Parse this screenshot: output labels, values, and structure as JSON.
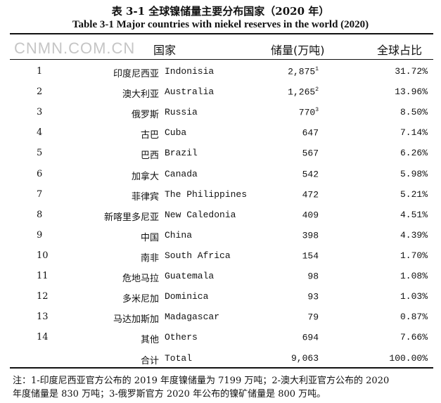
{
  "title_cn": "表 3-1  全球镍储量主要分布国家（2020 年）",
  "title_en": "Table 3-1 Major countries with niekel reserves in the world (2020)",
  "headers": {
    "country": "国家",
    "reserves": "储量(万吨)",
    "share": "全球占比"
  },
  "rows": [
    {
      "idx": "1",
      "cn": "印度尼西亚",
      "en": "Indonisia",
      "res": "2,875",
      "sup": "1",
      "pct": "31.72%"
    },
    {
      "idx": "2",
      "cn": "澳大利亚",
      "en": "Australia",
      "res": "1,265",
      "sup": "2",
      "pct": "13.96%"
    },
    {
      "idx": "3",
      "cn": "俄罗斯",
      "en": "Russia",
      "res": "770",
      "sup": "3",
      "pct": "8.50%"
    },
    {
      "idx": "4",
      "cn": "古巴",
      "en": "Cuba",
      "res": "647",
      "sup": "",
      "pct": "7.14%"
    },
    {
      "idx": "5",
      "cn": "巴西",
      "en": "Brazil",
      "res": "567",
      "sup": "",
      "pct": "6.26%"
    },
    {
      "idx": "6",
      "cn": "加拿大",
      "en": "Canada",
      "res": "542",
      "sup": "",
      "pct": "5.98%"
    },
    {
      "idx": "7",
      "cn": "菲律宾",
      "en": "The Philippines",
      "res": "472",
      "sup": "",
      "pct": "5.21%"
    },
    {
      "idx": "8",
      "cn": "新喀里多尼亚",
      "en": "New Caledonia",
      "res": "409",
      "sup": "",
      "pct": "4.51%"
    },
    {
      "idx": "9",
      "cn": "中国",
      "en": "China",
      "res": "398",
      "sup": "",
      "pct": "4.39%"
    },
    {
      "idx": "10",
      "cn": "南非",
      "en": "South Africa",
      "res": "154",
      "sup": "",
      "pct": "1.70%"
    },
    {
      "idx": "11",
      "cn": "危地马拉",
      "en": "Guatemala",
      "res": "98",
      "sup": "",
      "pct": "1.08%"
    },
    {
      "idx": "12",
      "cn": "多米尼加",
      "en": "Dominica",
      "res": "93",
      "sup": "",
      "pct": "1.03%"
    },
    {
      "idx": "13",
      "cn": "马达加斯加",
      "en": "Madagascar",
      "res": "79",
      "sup": "",
      "pct": "0.87%"
    },
    {
      "idx": "14",
      "cn": "其他",
      "en": "Others",
      "res": "694",
      "sup": "",
      "pct": "7.66%"
    }
  ],
  "total": {
    "cn": "合计",
    "en": "Total",
    "res": "9,063",
    "pct": "100.00%"
  },
  "notes": [
    "注：1-印度尼西亚官方公布的 2019 年度镍储量为 7199 万吨；2-澳大利亚官方公布的 2020",
    "年度储量是 830 万吨；3-俄罗斯官方 2020 年公布的镍矿储量是 800 万吨。"
  ],
  "watermark": "CNMN.COM.CN"
}
